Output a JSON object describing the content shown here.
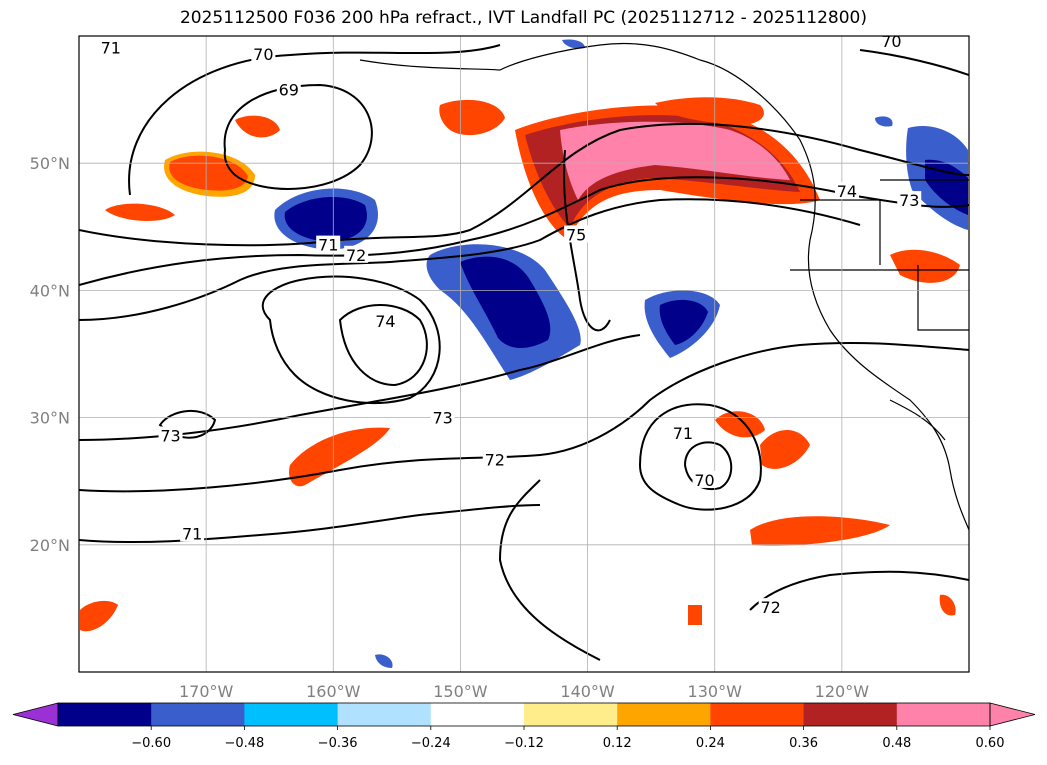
{
  "title": "2025112500 F036 200 hPa refract., IVT Landfall PC (2025112712 - 2025112800)",
  "map": {
    "projection": "plate carree",
    "lon_range": [
      -180,
      -110
    ],
    "lat_range": [
      10,
      60
    ],
    "gridlines": true,
    "lon_ticks": [
      {
        "lon": -170,
        "label": "170°W"
      },
      {
        "lon": -160,
        "label": "160°W"
      },
      {
        "lon": -150,
        "label": "150°W"
      },
      {
        "lon": -140,
        "label": "140°W"
      },
      {
        "lon": -130,
        "label": "130°W"
      },
      {
        "lon": -120,
        "label": "120°W"
      }
    ],
    "lat_ticks": [
      {
        "lat": 20,
        "label": "20°N"
      },
      {
        "lat": 30,
        "label": "30°N"
      },
      {
        "lat": 40,
        "label": "40°N"
      },
      {
        "lat": 50,
        "label": "50°N"
      }
    ],
    "contour_labels": [
      {
        "lon": -177.5,
        "lat": 59.1,
        "text": "71"
      },
      {
        "lon": -165.5,
        "lat": 58.6,
        "text": "70"
      },
      {
        "lon": -163.5,
        "lat": 55.8,
        "text": "69"
      },
      {
        "lon": -160.4,
        "lat": 43.6,
        "text": "71"
      },
      {
        "lon": -158.2,
        "lat": 42.8,
        "text": "72"
      },
      {
        "lon": -155.9,
        "lat": 37.6,
        "text": "74"
      },
      {
        "lon": -172.8,
        "lat": 28.6,
        "text": "73"
      },
      {
        "lon": -151.4,
        "lat": 30.0,
        "text": "73"
      },
      {
        "lon": -147.3,
        "lat": 26.7,
        "text": "72"
      },
      {
        "lon": -171.1,
        "lat": 20.9,
        "text": "71"
      },
      {
        "lon": -140.9,
        "lat": 44.4,
        "text": "75"
      },
      {
        "lon": -132.5,
        "lat": 28.8,
        "text": "71"
      },
      {
        "lon": -130.8,
        "lat": 25.1,
        "text": "70"
      },
      {
        "lon": -125.6,
        "lat": 15.1,
        "text": "72"
      },
      {
        "lon": -119.6,
        "lat": 47.8,
        "text": "74"
      },
      {
        "lon": -114.7,
        "lat": 47.1,
        "text": "73"
      },
      {
        "lon": -116.1,
        "lat": 59.6,
        "text": "70"
      }
    ]
  },
  "colorbar": {
    "ticks": [
      "−0.60",
      "−0.48",
      "−0.36",
      "−0.24",
      "−0.12",
      "0.12",
      "0.24",
      "0.36",
      "0.48",
      "0.60"
    ],
    "colors": [
      "#9b30d4",
      "#00008b",
      "#3a5fcd",
      "#00bfff",
      "#b0e2ff",
      "#ffffff",
      "#ffec8b",
      "#ffa500",
      "#ff4500",
      "#b22222",
      "#ff82ab",
      "#ff82ab"
    ],
    "extend": "both"
  }
}
